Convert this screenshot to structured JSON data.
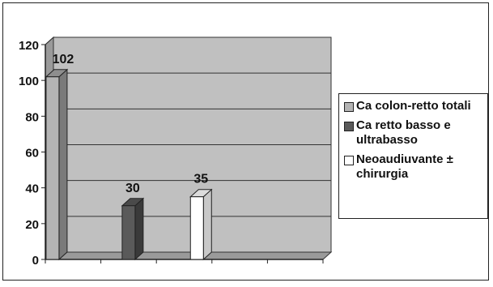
{
  "chart_data": {
    "type": "bar",
    "style": "3d-column",
    "title": "",
    "xlabel": "",
    "ylabel": "",
    "ylim": [
      0,
      120
    ],
    "yticks": [
      0,
      20,
      40,
      60,
      80,
      100,
      120
    ],
    "grid": true,
    "legend_position": "right",
    "background_color": "#c0c0c0",
    "series": [
      {
        "name": "Ca colon-retto totali",
        "value": 102,
        "color": "#b4b4b4",
        "side_color": "#7a7a7a",
        "top_color": "#8e8e8e"
      },
      {
        "name": "Ca retto basso e ultrabasso",
        "value": 30,
        "color": "#5a5a5a",
        "side_color": "#3a3a3a",
        "top_color": "#4a4a4a"
      },
      {
        "name": "Neoaudiuvante ± chirurgia",
        "value": 35,
        "color": "#ffffff",
        "side_color": "#c8c8c8",
        "top_color": "#dcdcdc"
      }
    ]
  }
}
